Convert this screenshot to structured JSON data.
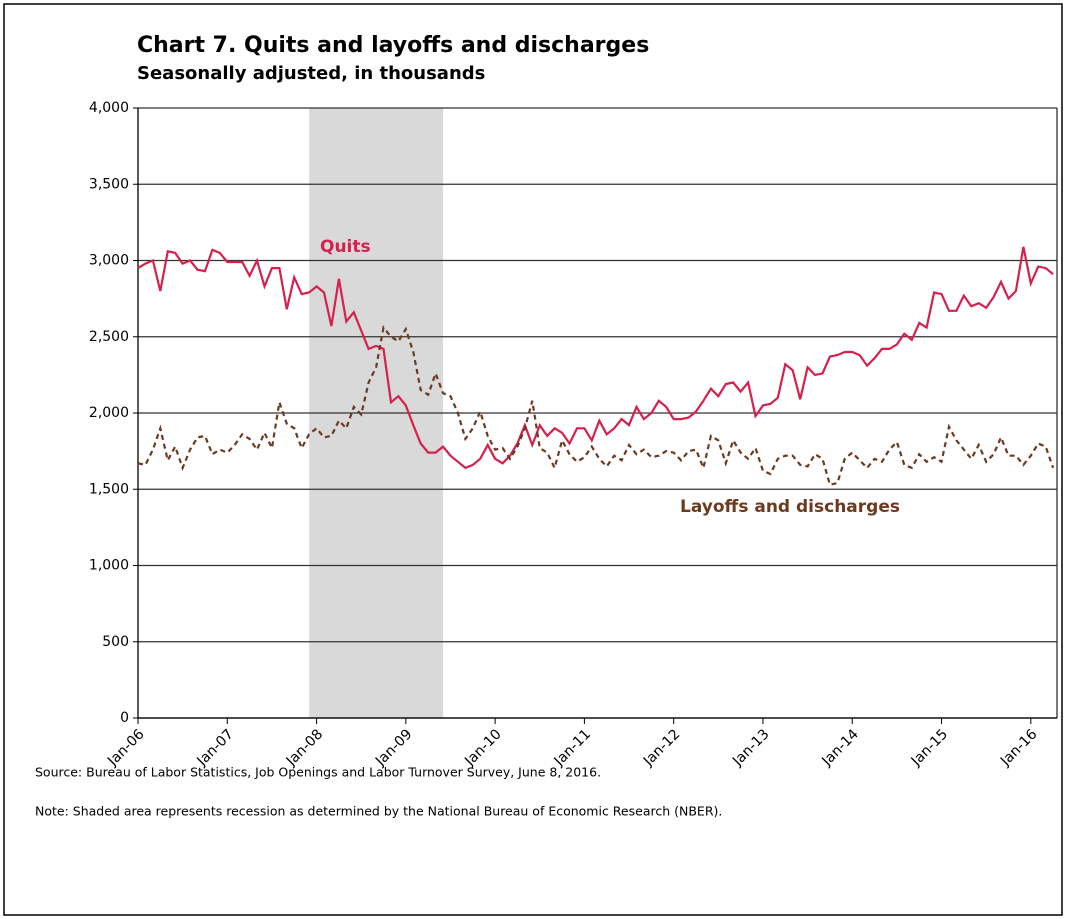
{
  "chart_data": {
    "type": "line",
    "title": "Chart 7. Quits and layoffs and discharges",
    "subtitle": "Seasonally adjusted, in thousands",
    "source": "Source: Bureau of Labor Statistics, Job Openings and Labor Turnover Survey, June 8, 2016.",
    "note": "Note: Shaded area represents recession as determined by the National Bureau of Economic Research (NBER).",
    "categories": [
      "Jan-06",
      null,
      null,
      null,
      null,
      null,
      null,
      null,
      null,
      null,
      null,
      null,
      "Jan-07",
      null,
      null,
      null,
      null,
      null,
      null,
      null,
      null,
      null,
      null,
      null,
      "Jan-08",
      null,
      null,
      null,
      null,
      null,
      null,
      null,
      null,
      null,
      null,
      null,
      "Jan-09",
      null,
      null,
      null,
      null,
      null,
      null,
      null,
      null,
      null,
      null,
      null,
      "Jan-10",
      null,
      null,
      null,
      null,
      null,
      null,
      null,
      null,
      null,
      null,
      null,
      "Jan-11",
      null,
      null,
      null,
      null,
      null,
      null,
      null,
      null,
      null,
      null,
      null,
      "Jan-12",
      null,
      null,
      null,
      null,
      null,
      null,
      null,
      null,
      null,
      null,
      null,
      "Jan-13",
      null,
      null,
      null,
      null,
      null,
      null,
      null,
      null,
      null,
      null,
      null,
      "Jan-14",
      null,
      null,
      null,
      null,
      null,
      null,
      null,
      null,
      null,
      null,
      null,
      "Jan-15",
      null,
      null,
      null,
      null,
      null,
      null,
      null,
      null,
      null,
      null,
      null,
      "Jan-16",
      null,
      null,
      null
    ],
    "shaded_range": [
      23,
      41
    ],
    "shade_color": "#d9d9d9",
    "series": [
      {
        "name": "Quits",
        "color": "#d5214e",
        "style": "solid",
        "values": [
          2950,
          2980,
          3000,
          2800,
          3060,
          3050,
          2980,
          3000,
          2940,
          2930,
          3070,
          3050,
          2990,
          2990,
          2990,
          2900,
          3000,
          2830,
          2950,
          2950,
          2680,
          2890,
          2780,
          2790,
          2830,
          2790,
          2570,
          2880,
          2600,
          2660,
          2540,
          2420,
          2440,
          2420,
          2070,
          2110,
          2050,
          1920,
          1800,
          1740,
          1740,
          1780,
          1720,
          1680,
          1640,
          1660,
          1700,
          1790,
          1700,
          1670,
          1720,
          1800,
          1920,
          1790,
          1920,
          1850,
          1900,
          1870,
          1800,
          1900,
          1900,
          1820,
          1950,
          1860,
          1900,
          1960,
          1920,
          2040,
          1960,
          2000,
          2080,
          2040,
          1960,
          1960,
          1970,
          2010,
          2080,
          2160,
          2110,
          2190,
          2200,
          2140,
          2200,
          1980,
          2050,
          2060,
          2100,
          2320,
          2280,
          2090,
          2300,
          2250,
          2260,
          2370,
          2380,
          2400,
          2400,
          2380,
          2310,
          2360,
          2420,
          2420,
          2450,
          2520,
          2480,
          2590,
          2560,
          2790,
          2780,
          2670,
          2670,
          2770,
          2700,
          2720,
          2690,
          2760,
          2860,
          2750,
          2800,
          3090,
          2850,
          2960,
          2950,
          2910
        ]
      },
      {
        "name": "Layoffs and discharges",
        "color": "#6b3a1f",
        "style": "dashed",
        "values": [
          1670,
          1660,
          1760,
          1900,
          1690,
          1780,
          1640,
          1760,
          1840,
          1850,
          1730,
          1760,
          1740,
          1790,
          1860,
          1830,
          1760,
          1870,
          1770,
          2070,
          1930,
          1900,
          1770,
          1860,
          1900,
          1840,
          1850,
          1950,
          1900,
          2040,
          1990,
          2200,
          2300,
          2560,
          2500,
          2470,
          2550,
          2400,
          2150,
          2120,
          2260,
          2130,
          2110,
          2000,
          1830,
          1900,
          2010,
          1850,
          1760,
          1770,
          1700,
          1780,
          1900,
          2080,
          1770,
          1740,
          1640,
          1820,
          1730,
          1680,
          1710,
          1780,
          1700,
          1650,
          1720,
          1690,
          1790,
          1730,
          1760,
          1710,
          1720,
          1750,
          1740,
          1690,
          1750,
          1760,
          1640,
          1850,
          1820,
          1670,
          1820,
          1740,
          1700,
          1770,
          1620,
          1600,
          1700,
          1720,
          1720,
          1660,
          1650,
          1730,
          1700,
          1530,
          1540,
          1700,
          1740,
          1690,
          1640,
          1700,
          1680,
          1760,
          1810,
          1660,
          1640,
          1730,
          1680,
          1710,
          1680,
          1910,
          1820,
          1760,
          1700,
          1790,
          1680,
          1730,
          1840,
          1720,
          1720,
          1660,
          1720,
          1800,
          1780,
          1640
        ]
      }
    ],
    "ylim": [
      0,
      4000
    ],
    "yticks": [
      0,
      {
        "value": 500,
        "label": "500"
      },
      {
        "value": 1000,
        "label": "1,000"
      },
      {
        "value": 1500,
        "label": "1,500"
      },
      {
        "value": 2000,
        "label": "2,000"
      },
      {
        "value": 2500,
        "label": "2,500"
      },
      {
        "value": 3000,
        "label": "3,000"
      },
      {
        "value": 3500,
        "label": "3,500"
      },
      {
        "value": 4000,
        "label": "4,000"
      }
    ],
    "grid": true
  }
}
